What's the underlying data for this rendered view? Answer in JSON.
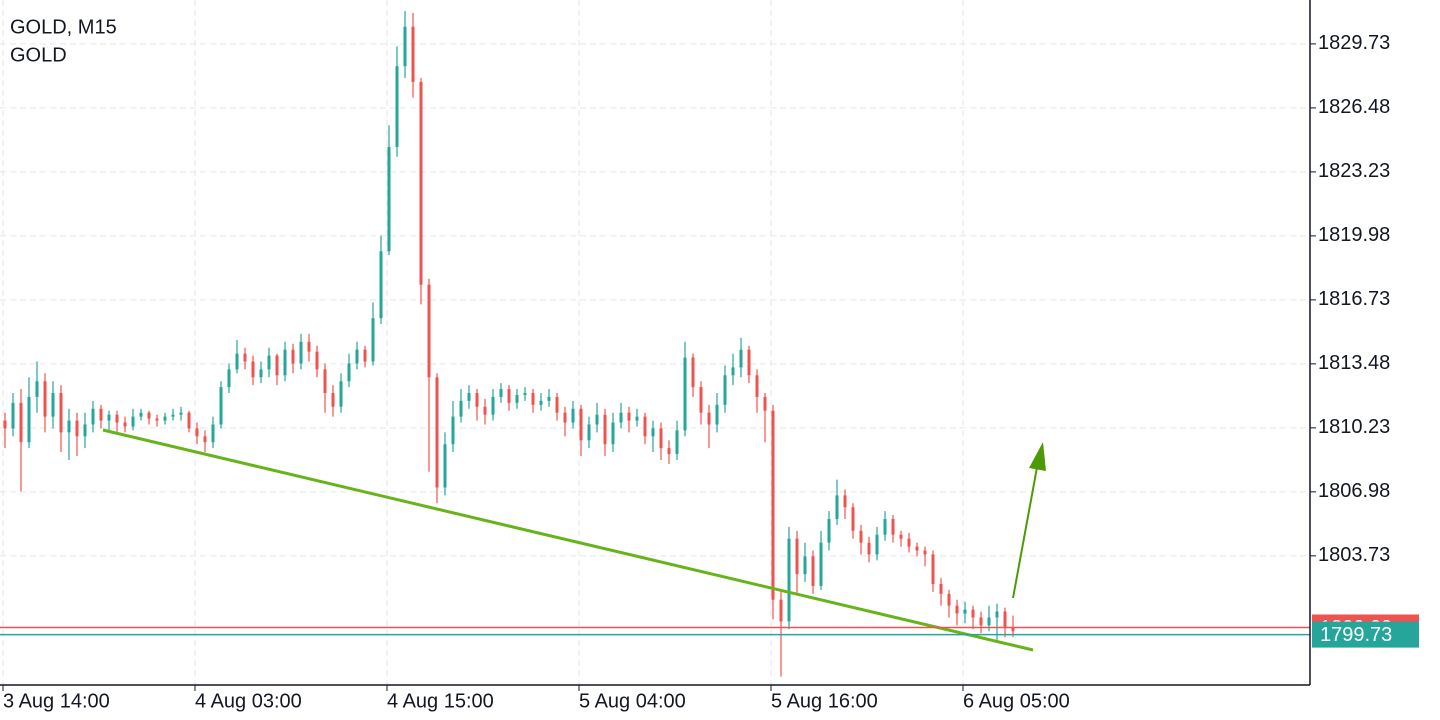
{
  "chart_data": {
    "type": "candlestick",
    "title": "GOLD, M15",
    "subtitle": "GOLD",
    "up_color": "#26a69a",
    "down_color": "#ef5350",
    "grid": true,
    "ylim": [
      1797.17,
      1831.96
    ],
    "yticks": [
      1803.73,
      1806.98,
      1810.23,
      1813.48,
      1816.73,
      1819.98,
      1823.23,
      1826.48,
      1829.73
    ],
    "price_lines": [
      {
        "value": 1800.09,
        "color": "#ef5350"
      },
      {
        "value": 1799.73,
        "color": "#26a69a"
      }
    ],
    "categories": [
      "3 Aug 14:00",
      null,
      null,
      null,
      null,
      null,
      null,
      null,
      null,
      null,
      null,
      null,
      null,
      null,
      null,
      null,
      null,
      null,
      null,
      null,
      null,
      null,
      null,
      null,
      "4 Aug 03:00",
      null,
      null,
      null,
      null,
      null,
      null,
      null,
      null,
      null,
      null,
      null,
      null,
      null,
      null,
      null,
      null,
      null,
      null,
      null,
      null,
      null,
      null,
      null,
      "4 Aug 15:00",
      null,
      null,
      null,
      null,
      null,
      null,
      null,
      null,
      null,
      null,
      null,
      null,
      null,
      null,
      null,
      null,
      null,
      null,
      null,
      null,
      null,
      null,
      null,
      "5 Aug 04:00",
      null,
      null,
      null,
      null,
      null,
      null,
      null,
      null,
      null,
      null,
      null,
      null,
      null,
      null,
      null,
      null,
      null,
      null,
      null,
      null,
      null,
      null,
      null,
      "5 Aug 16:00",
      null,
      null,
      null,
      null,
      null,
      null,
      null,
      null,
      null,
      null,
      null,
      null,
      null,
      null,
      null,
      null,
      null,
      null,
      null,
      null,
      null,
      null,
      null,
      "6 Aug 05:00",
      null,
      null,
      null,
      null,
      null,
      null
    ],
    "open": [
      1810.6,
      1810.2,
      1811.5,
      1809.5,
      1811.8,
      1812.6,
      1810.8,
      1812.0,
      1810.0,
      1810.6,
      1809.8,
      1810.4,
      1811.2,
      1810.6,
      1810.9,
      1810.5,
      1810.3,
      1810.8,
      1811.0,
      1810.7,
      1810.6,
      1810.8,
      1810.9,
      1811.0,
      1810.2,
      1809.8,
      1809.5,
      1810.4,
      1812.3,
      1813.2,
      1814.0,
      1813.6,
      1812.8,
      1813.2,
      1813.9,
      1812.9,
      1814.2,
      1813.5,
      1814.6,
      1814.1,
      1813.2,
      1812.0,
      1811.3,
      1812.6,
      1813.5,
      1814.2,
      1813.6,
      1815.8,
      1819.2,
      1824.5,
      1828.6,
      1830.6,
      1827.8,
      1817.5,
      1812.8,
      1807.2,
      1809.4,
      1810.8,
      1811.6,
      1812.0,
      1811.3,
      1810.9,
      1811.8,
      1812.2,
      1811.5,
      1811.9,
      1812.0,
      1811.4,
      1811.6,
      1811.8,
      1811.0,
      1810.5,
      1811.2,
      1809.6,
      1810.4,
      1810.9,
      1809.4,
      1810.5,
      1811.0,
      1810.6,
      1810.8,
      1809.8,
      1810.2,
      1809.2,
      1808.9,
      1810.1,
      1813.8,
      1812.3,
      1811.0,
      1810.4,
      1811.4,
      1812.9,
      1813.3,
      1814.2,
      1812.9,
      1811.8,
      1811.1,
      1801.5,
      1800.4,
      1804.6,
      1802.8,
      1803.7,
      1802.2,
      1804.4,
      1805.6,
      1806.8,
      1806.2,
      1805.0,
      1804.4,
      1803.8,
      1804.8,
      1805.6,
      1804.8,
      1804.6,
      1804.2,
      1804.0,
      1803.8,
      1802.3,
      1801.8,
      1801.2,
      1800.8,
      1801.0,
      1800.6,
      1800.2,
      1800.6,
      1800.9,
      1800.1
    ],
    "high": [
      1811.0,
      1812.0,
      1812.2,
      1812.8,
      1813.6,
      1813.0,
      1812.6,
      1812.4,
      1811.2,
      1811.0,
      1811.0,
      1811.6,
      1811.4,
      1811.1,
      1811.1,
      1810.8,
      1811.2,
      1811.2,
      1811.1,
      1810.9,
      1811.0,
      1811.2,
      1811.3,
      1811.1,
      1810.5,
      1810.1,
      1810.8,
      1812.6,
      1813.5,
      1814.7,
      1814.3,
      1813.9,
      1813.6,
      1814.3,
      1814.0,
      1814.6,
      1814.5,
      1815.0,
      1815.0,
      1814.4,
      1813.5,
      1812.4,
      1813.0,
      1814.0,
      1814.6,
      1814.4,
      1816.6,
      1820.0,
      1825.6,
      1829.6,
      1831.4,
      1831.3,
      1828.0,
      1817.8,
      1813.0,
      1810.0,
      1811.6,
      1812.2,
      1812.4,
      1812.2,
      1811.7,
      1812.2,
      1812.5,
      1812.4,
      1812.2,
      1812.3,
      1812.2,
      1812.0,
      1812.2,
      1812.0,
      1811.3,
      1811.6,
      1811.4,
      1810.8,
      1811.5,
      1811.2,
      1811.0,
      1811.5,
      1811.3,
      1811.2,
      1811.0,
      1810.6,
      1810.5,
      1809.6,
      1810.6,
      1814.6,
      1814.0,
      1812.6,
      1811.4,
      1812.0,
      1813.4,
      1814.0,
      1814.8,
      1814.4,
      1813.2,
      1812.0,
      1811.4,
      1802.0,
      1805.2,
      1805.0,
      1804.4,
      1804.0,
      1805.0,
      1806.0,
      1807.6,
      1807.1,
      1806.4,
      1805.3,
      1804.7,
      1805.2,
      1806.0,
      1805.8,
      1805.0,
      1804.9,
      1804.4,
      1804.2,
      1804.0,
      1802.6,
      1802.0,
      1801.5,
      1801.4,
      1801.2,
      1800.9,
      1801.2,
      1801.3,
      1801.1,
      1800.7
    ],
    "low": [
      1809.2,
      1809.8,
      1807.0,
      1809.2,
      1811.0,
      1810.0,
      1810.2,
      1809.0,
      1808.6,
      1808.8,
      1809.2,
      1810.0,
      1810.2,
      1810.1,
      1810.0,
      1810.0,
      1810.1,
      1810.6,
      1810.4,
      1810.3,
      1810.4,
      1810.6,
      1810.6,
      1810.0,
      1809.4,
      1809.0,
      1809.2,
      1810.2,
      1812.0,
      1813.0,
      1813.2,
      1812.4,
      1812.5,
      1812.8,
      1812.4,
      1812.6,
      1813.0,
      1813.2,
      1813.6,
      1812.8,
      1811.0,
      1810.8,
      1811.0,
      1812.3,
      1813.2,
      1813.3,
      1813.4,
      1815.5,
      1819.0,
      1824.0,
      1828.0,
      1827.0,
      1816.5,
      1808.0,
      1806.4,
      1806.8,
      1809.0,
      1810.5,
      1811.2,
      1810.6,
      1810.4,
      1810.6,
      1811.5,
      1811.1,
      1811.2,
      1811.6,
      1811.0,
      1811.1,
      1811.3,
      1810.6,
      1809.8,
      1810.2,
      1808.8,
      1809.2,
      1810.0,
      1808.8,
      1809.0,
      1810.2,
      1810.0,
      1810.3,
      1809.4,
      1809.0,
      1808.6,
      1808.4,
      1808.6,
      1809.8,
      1811.8,
      1810.4,
      1809.2,
      1810.0,
      1811.0,
      1812.4,
      1812.8,
      1812.5,
      1811.0,
      1809.5,
      1800.5,
      1797.6,
      1800.0,
      1801.8,
      1802.4,
      1801.8,
      1802.0,
      1804.0,
      1805.3,
      1805.6,
      1804.6,
      1803.8,
      1803.4,
      1803.5,
      1804.5,
      1804.4,
      1804.2,
      1803.9,
      1803.7,
      1803.2,
      1801.9,
      1801.2,
      1800.6,
      1800.2,
      1800.3,
      1800.0,
      1799.8,
      1799.9,
      1799.3,
      1799.6,
      1799.6
    ],
    "close": [
      1810.2,
      1811.5,
      1809.5,
      1811.8,
      1812.6,
      1810.8,
      1812.0,
      1810.0,
      1810.6,
      1809.8,
      1810.4,
      1811.2,
      1810.6,
      1810.9,
      1810.5,
      1810.3,
      1810.8,
      1811.0,
      1810.7,
      1810.6,
      1810.8,
      1810.9,
      1811.0,
      1810.2,
      1809.8,
      1809.5,
      1810.4,
      1812.3,
      1813.2,
      1814.0,
      1813.6,
      1812.8,
      1813.2,
      1813.9,
      1812.9,
      1814.2,
      1813.5,
      1814.6,
      1814.1,
      1813.2,
      1812.0,
      1811.3,
      1812.6,
      1813.5,
      1814.2,
      1813.6,
      1815.8,
      1819.2,
      1824.5,
      1828.6,
      1830.6,
      1827.8,
      1817.5,
      1812.8,
      1807.2,
      1809.4,
      1810.8,
      1811.6,
      1812.0,
      1811.3,
      1810.9,
      1811.8,
      1812.2,
      1811.5,
      1811.9,
      1812.0,
      1811.4,
      1811.6,
      1811.8,
      1811.0,
      1810.5,
      1811.2,
      1809.6,
      1810.4,
      1810.9,
      1809.4,
      1810.5,
      1811.0,
      1810.6,
      1810.8,
      1809.8,
      1810.2,
      1809.2,
      1808.9,
      1810.1,
      1813.8,
      1812.3,
      1811.0,
      1810.4,
      1811.4,
      1812.9,
      1813.3,
      1814.2,
      1812.9,
      1811.8,
      1811.1,
      1801.5,
      1800.4,
      1804.6,
      1802.8,
      1803.7,
      1802.2,
      1804.4,
      1805.6,
      1806.8,
      1806.2,
      1805.0,
      1804.4,
      1803.8,
      1804.8,
      1805.6,
      1804.8,
      1804.6,
      1804.2,
      1804.0,
      1803.8,
      1802.3,
      1801.8,
      1801.2,
      1800.8,
      1801.0,
      1800.6,
      1800.2,
      1800.6,
      1800.9,
      1800.1,
      1799.9
    ]
  }
}
